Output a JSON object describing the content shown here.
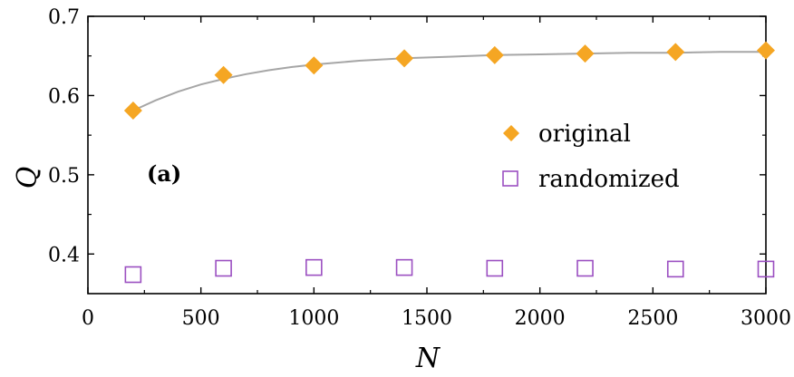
{
  "chart_data": {
    "type": "scatter",
    "xlabel": "N",
    "ylabel": "Q",
    "panel_label": "(a)",
    "xlim": [
      0,
      3000
    ],
    "ylim": [
      0.35,
      0.7
    ],
    "x_ticks": [
      0,
      500,
      1000,
      1500,
      2000,
      2500,
      3000
    ],
    "y_ticks": [
      0.4,
      0.5,
      0.6,
      0.7
    ],
    "x_tick_labels": [
      "0",
      "500",
      "1000",
      "1500",
      "2000",
      "2500",
      "3000"
    ],
    "y_tick_labels": [
      "0.4",
      "0.5",
      "0.6",
      "0.7"
    ],
    "grid": false,
    "legend_position": "center-right",
    "x": [
      200,
      600,
      1000,
      1400,
      1800,
      2200,
      2600,
      3000
    ],
    "series": [
      {
        "name": "original",
        "marker": "filled-diamond",
        "color": "#f5a623",
        "values": [
          0.581,
          0.626,
          0.638,
          0.647,
          0.651,
          0.653,
          0.655,
          0.657
        ]
      },
      {
        "name": "randomized",
        "marker": "open-square",
        "color": "#9b4fc1",
        "values": [
          0.374,
          0.382,
          0.383,
          0.383,
          0.382,
          0.382,
          0.381,
          0.381
        ]
      }
    ],
    "fit_curve": {
      "color": "#a6a6a6",
      "x": [
        200,
        300,
        400,
        500,
        600,
        700,
        800,
        900,
        1000,
        1200,
        1400,
        1600,
        1800,
        2000,
        2200,
        2400,
        2600,
        2800,
        3000
      ],
      "y": [
        0.581,
        0.594,
        0.605,
        0.614,
        0.621,
        0.627,
        0.632,
        0.636,
        0.639,
        0.644,
        0.647,
        0.649,
        0.651,
        0.652,
        0.653,
        0.654,
        0.654,
        0.655,
        0.655
      ]
    }
  }
}
